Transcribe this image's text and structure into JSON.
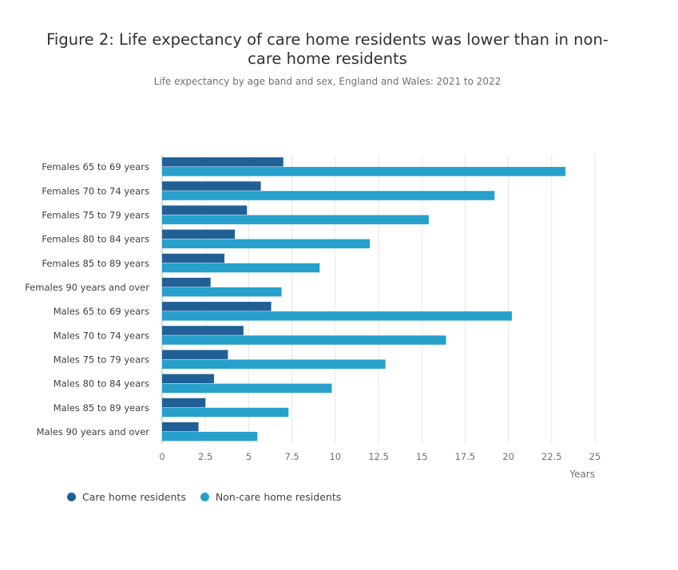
{
  "title": "Figure 2: Life expectancy of care home residents was lower than in non-care home residents",
  "title_line1": "Figure 2: Life expectancy of care home residents was lower than in non-",
  "title_line2": "care home residents",
  "subtitle": "Life expectancy by age band and sex, England and Wales: 2021 to 2022",
  "chart_data": {
    "type": "bar",
    "orientation": "horizontal",
    "title": "Figure 2: Life expectancy of care home residents was lower than in non-care home residents",
    "subtitle": "Life expectancy by age band and sex, England and Wales: 2021 to 2022",
    "xlabel": "Years",
    "ylabel": "",
    "xlim": [
      0,
      25
    ],
    "xticks": [
      0,
      2.5,
      5,
      7.5,
      10,
      12.5,
      15,
      17.5,
      20,
      22.5,
      25
    ],
    "xtick_labels": [
      "0",
      "2.5",
      "5",
      "7.5",
      "10",
      "12.5",
      "15",
      "17.5",
      "20",
      "22.5",
      "25"
    ],
    "grid": true,
    "legend_position": "bottom-left",
    "categories": [
      "Females 65 to 69 years",
      "Females 70 to 74 years",
      "Females 75 to 79 years",
      "Females 80 to 84 years",
      "Females 85 to 89 years",
      "Females 90 years and over",
      "Males 65 to 69 years",
      "Males 70 to 74 years",
      "Males 75 to 79 years",
      "Males 80 to 84 years",
      "Males 85 to 89 years",
      "Males 90 years and over"
    ],
    "series": [
      {
        "name": "Care home residents",
        "color": "#206095",
        "values": [
          7.0,
          5.7,
          4.9,
          4.2,
          3.6,
          2.8,
          6.3,
          4.7,
          3.8,
          3.0,
          2.5,
          2.1
        ]
      },
      {
        "name": "Non-care home residents",
        "color": "#27a0cc",
        "values": [
          23.3,
          19.2,
          15.4,
          12.0,
          9.1,
          6.9,
          20.2,
          16.4,
          12.9,
          9.8,
          7.3,
          5.5
        ]
      }
    ]
  }
}
